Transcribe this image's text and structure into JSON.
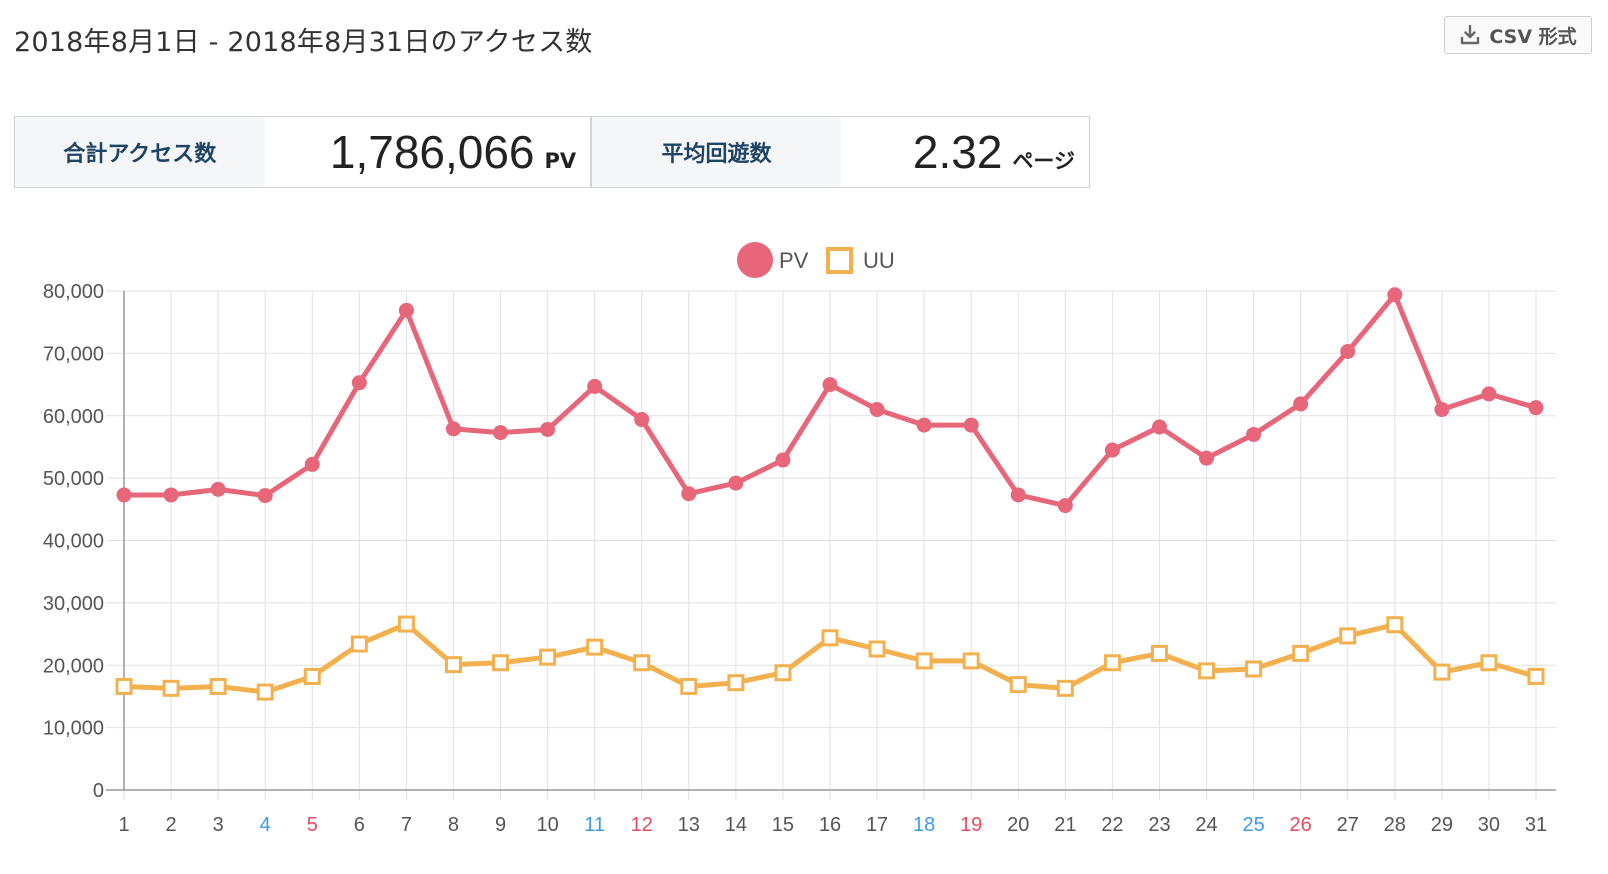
{
  "header": {
    "title": "2018年8月1日 - 2018年8月31日のアクセス数",
    "csv_label": "CSV 形式"
  },
  "stats": {
    "total_label": "合計アクセス数",
    "total_value": "1,786,066",
    "total_unit": "PV",
    "avg_label": "平均回遊数",
    "avg_value": "2.32",
    "avg_unit": "ページ"
  },
  "colors": {
    "pv": "#e8667a",
    "uu": "#f3b04f",
    "weekday": "#555555",
    "saturday": "#3d9bea",
    "sunday": "#e84a5f",
    "grid": "#e2e2e2",
    "axis": "#999999"
  },
  "chart_data": {
    "type": "line",
    "categories": [
      "1",
      "2",
      "3",
      "4",
      "5",
      "6",
      "7",
      "8",
      "9",
      "10",
      "11",
      "12",
      "13",
      "14",
      "15",
      "16",
      "17",
      "18",
      "19",
      "20",
      "21",
      "22",
      "23",
      "24",
      "25",
      "26",
      "27",
      "28",
      "29",
      "30",
      "31"
    ],
    "day_types": [
      "weekday",
      "weekday",
      "weekday",
      "saturday",
      "sunday",
      "weekday",
      "weekday",
      "weekday",
      "weekday",
      "weekday",
      "saturday",
      "sunday",
      "weekday",
      "weekday",
      "weekday",
      "weekday",
      "weekday",
      "saturday",
      "sunday",
      "weekday",
      "weekday",
      "weekday",
      "weekday",
      "weekday",
      "saturday",
      "sunday",
      "weekday",
      "weekday",
      "weekday",
      "weekday",
      "weekday"
    ],
    "series": [
      {
        "name": "PV",
        "marker": "circle",
        "values": [
          47300,
          47300,
          48200,
          47200,
          52200,
          65300,
          76900,
          57900,
          57300,
          57800,
          64700,
          59400,
          47500,
          49200,
          52900,
          65000,
          61000,
          58500,
          58500,
          47300,
          45600,
          54500,
          58200,
          53200,
          57000,
          61900,
          70300,
          79400,
          61000,
          63500,
          61300
        ]
      },
      {
        "name": "UU",
        "marker": "square",
        "values": [
          16600,
          16300,
          16600,
          15700,
          18200,
          23400,
          26600,
          20100,
          20400,
          21300,
          22900,
          20400,
          16600,
          17200,
          18800,
          24400,
          22600,
          20700,
          20700,
          16900,
          16300,
          20400,
          21900,
          19100,
          19400,
          21900,
          24700,
          26500,
          18900,
          20400,
          18200
        ]
      }
    ],
    "ylim": [
      0,
      80000
    ],
    "yticks": [
      "0",
      "10,000",
      "20,000",
      "30,000",
      "40,000",
      "50,000",
      "60,000",
      "70,000",
      "80,000"
    ],
    "legend_position": "top-center",
    "grid": true,
    "title": "",
    "xlabel": "",
    "ylabel": ""
  }
}
